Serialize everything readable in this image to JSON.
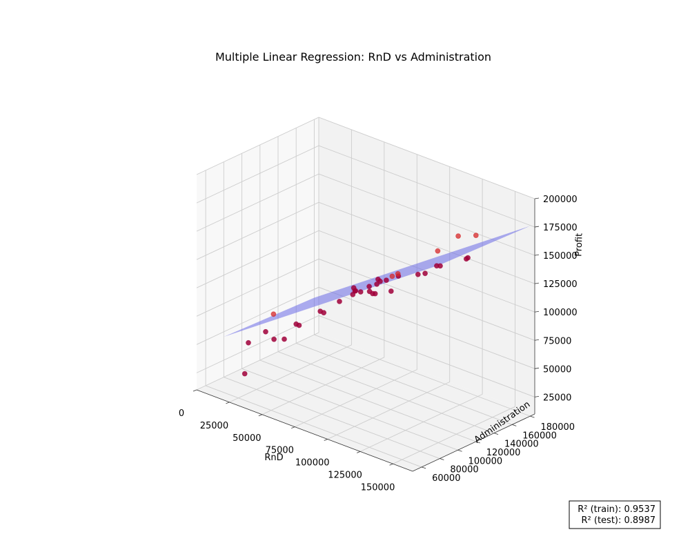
{
  "chart_data": {
    "type": "scatter",
    "title": "Multiple Linear Regression: RnD vs Administration",
    "xlabel": "RnD",
    "ylabel": "Administration",
    "zlabel": "Profit",
    "xlim": [
      0,
      165000
    ],
    "ylim": [
      50000,
      185000
    ],
    "zlim": [
      10000,
      200000
    ],
    "x_ticks": [
      0,
      25000,
      50000,
      75000,
      100000,
      125000,
      150000
    ],
    "y_ticks": [
      60000,
      80000,
      100000,
      120000,
      140000,
      160000,
      180000
    ],
    "z_ticks": [
      25000,
      50000,
      75000,
      100000,
      125000,
      150000,
      175000,
      200000
    ],
    "grid": true,
    "point_color": "#d62728",
    "train_point_color": "#a0003a",
    "plane_color": "#6a6ae6",
    "plane": {
      "intercept": 48000,
      "coef_rnd": 0.82,
      "coef_admin": -0.03
    },
    "series": [
      {
        "name": "",
        "points": [
          [
            5000,
            100000,
            35000
          ],
          [
            16000,
            80000,
            20000
          ],
          [
            22000,
            115000,
            40000
          ],
          [
            0,
            135000,
            45000
          ],
          [
            23000,
            130000,
            47000
          ],
          [
            28000,
            95000,
            50000
          ],
          [
            32000,
            80000,
            64000
          ],
          [
            38000,
            105000,
            64000
          ],
          [
            40000,
            150000,
            68000
          ],
          [
            44000,
            160000,
            78000
          ],
          [
            53000,
            110000,
            80000
          ],
          [
            66000,
            95000,
            90000
          ],
          [
            64000,
            130000,
            92000
          ],
          [
            70000,
            130000,
            97000
          ],
          [
            66000,
            155000,
            97000
          ],
          [
            72000,
            145000,
            99000
          ],
          [
            78000,
            140000,
            106000
          ],
          [
            76000,
            115000,
            106000
          ],
          [
            73000,
            120000,
            103000
          ],
          [
            80000,
            125000,
            108000
          ],
          [
            85000,
            150000,
            110000
          ],
          [
            88000,
            120000,
            107000
          ],
          [
            93000,
            110000,
            113000
          ],
          [
            100000,
            150000,
            118000
          ],
          [
            95000,
            135000,
            122000
          ],
          [
            101000,
            120000,
            128000
          ],
          [
            100000,
            115000,
            126000
          ],
          [
            101000,
            95000,
            124000
          ],
          [
            114000,
            100000,
            128000
          ],
          [
            130000,
            160000,
            141000
          ],
          [
            122000,
            140000,
            152000
          ],
          [
            140000,
            100000,
            155000
          ],
          [
            135000,
            120000,
            152000
          ],
          [
            145000,
            140000,
            156000
          ],
          [
            110000,
            180000,
            145000
          ],
          [
            155000,
            95000,
            170000
          ],
          [
            165000,
            120000,
            192000
          ]
        ]
      }
    ]
  },
  "r2_box": {
    "train_label": "R² (train): 0.9537",
    "test_label": "R² (test): 0.8987"
  }
}
